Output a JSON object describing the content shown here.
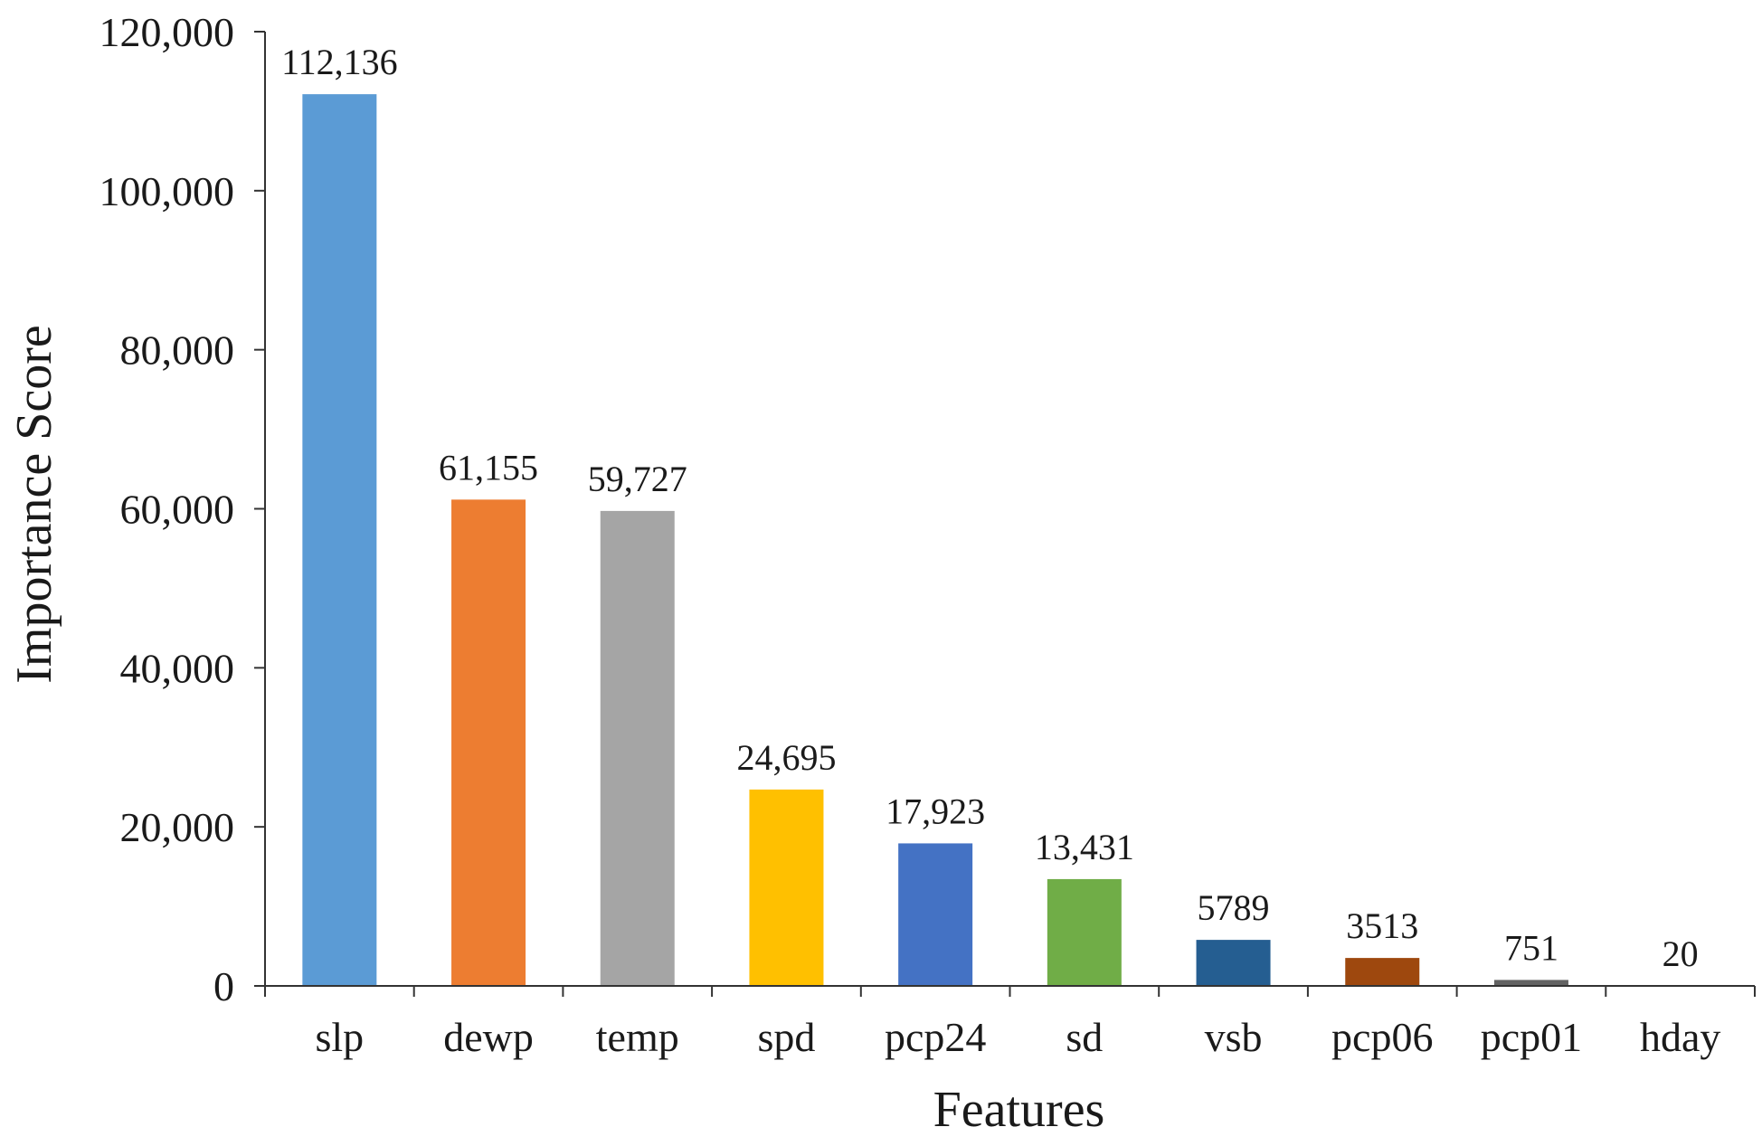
{
  "chart_data": {
    "type": "bar",
    "title": "",
    "xlabel": "Features",
    "ylabel": "Importance  Score",
    "ylim": [
      0,
      120000
    ],
    "yticks": [
      0,
      20000,
      40000,
      60000,
      80000,
      100000,
      120000
    ],
    "ytick_labels": [
      "0",
      "20,000",
      "40,000",
      "60,000",
      "80,000",
      "100,000",
      "120,000"
    ],
    "grid": false,
    "legend": "none",
    "categories": [
      "slp",
      "dewp",
      "temp",
      "spd",
      "pcp24",
      "sd",
      "vsb",
      "pcp06",
      "pcp01",
      "hday"
    ],
    "values": [
      112136,
      61155,
      59727,
      24695,
      17923,
      13431,
      5789,
      3513,
      751,
      20
    ],
    "data_labels": [
      "112,136",
      "61,155",
      "59,727",
      "24,695",
      "17,923",
      "13,431",
      "5789",
      "3513",
      "751",
      "20"
    ],
    "colors": [
      "#5B9BD5",
      "#ED7D31",
      "#A5A5A5",
      "#FFC000",
      "#4472C4",
      "#70AD47",
      "#255E91",
      "#9E480E",
      "#636363",
      "#997300"
    ]
  }
}
